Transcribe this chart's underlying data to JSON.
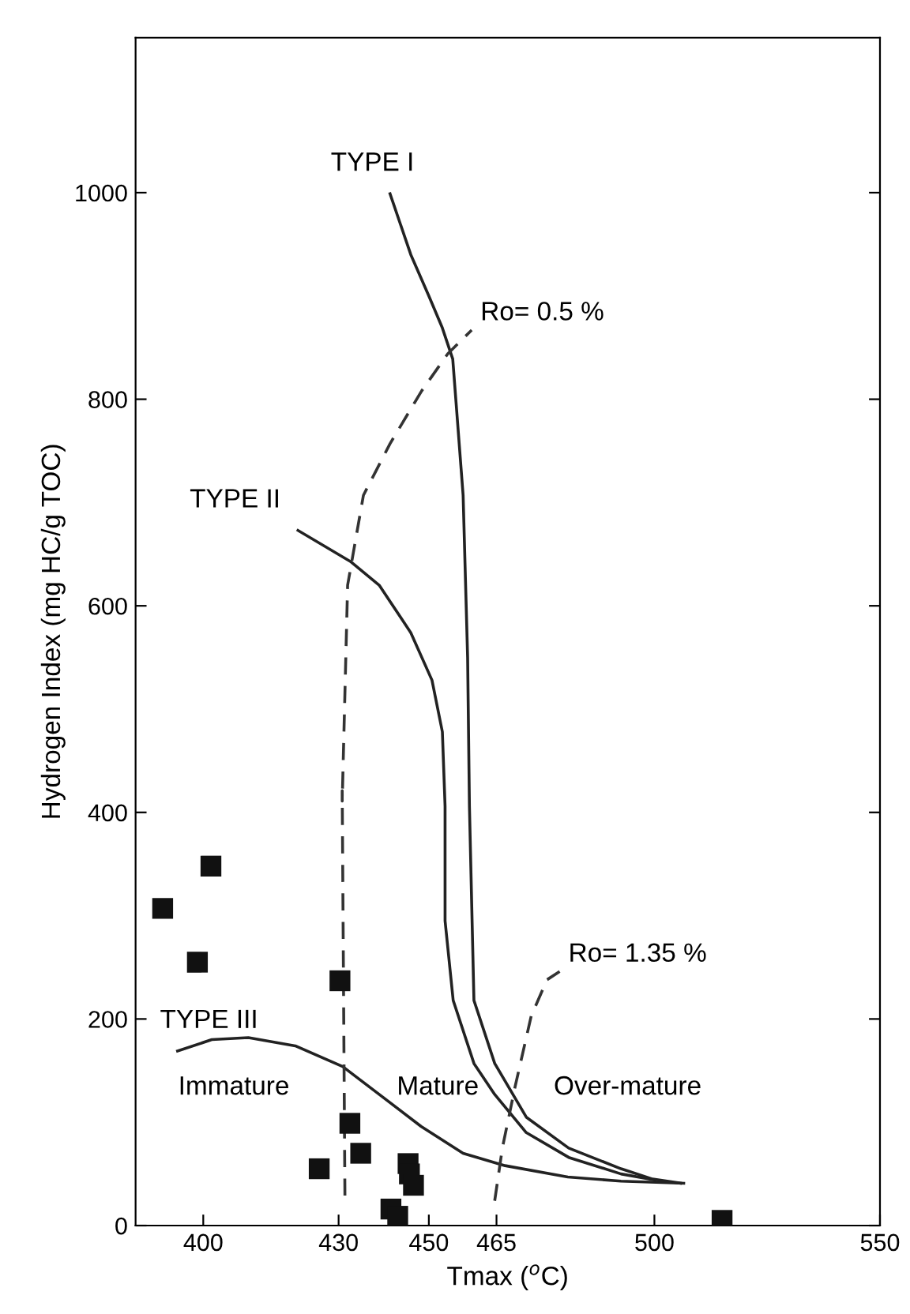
{
  "chart_data": {
    "type": "scatter",
    "xlabel": "Tmax ($^{o}$C)",
    "ylabel": "Hydrogen Index (mg HC/g TOC)",
    "xlim": [
      385,
      550
    ],
    "xticks": [
      400,
      430,
      450,
      465,
      500,
      550
    ],
    "ylim": [
      0,
      1150
    ],
    "yticks": [
      0,
      200,
      400,
      600,
      800,
      1000
    ],
    "grid": false,
    "legend": false,
    "series": [
      {
        "marker": "square",
        "color": "#111111",
        "x": [
          401.7,
          391,
          398.7,
          430.3,
          432.5,
          434.9,
          425.7,
          445.4,
          445.7,
          446.6,
          441.6,
          443.1,
          515
        ],
        "values": [
          348,
          307,
          255,
          237,
          99,
          70,
          55,
          60,
          50,
          39,
          16,
          9,
          5
        ]
      },
      {
        "name": "TYPE I",
        "type": "line",
        "line_style": "solid",
        "marker": "none",
        "color": "#222222",
        "x": [
          441.4,
          446,
          450,
          453.0,
          455.3,
          457.6,
          458.6,
          459.0,
          460,
          464.6,
          471.6,
          481,
          492.6,
          499.6,
          505.8
        ],
        "values": [
          999,
          940,
          900,
          869,
          839,
          707,
          550,
          406,
          218,
          157,
          105,
          75,
          55,
          45,
          41
        ]
      },
      {
        "name": "TYPE II",
        "type": "line",
        "line_style": "solid",
        "marker": "none",
        "color": "#222222",
        "x": [
          421,
          432.6,
          439,
          446,
          450.7,
          453,
          453.6,
          453.6,
          455.4,
          460,
          464.6,
          471.6,
          481,
          492.6,
          500.2
        ],
        "values": [
          673,
          643,
          620,
          574,
          528,
          478,
          406,
          295,
          218,
          157,
          127,
          90,
          66,
          50,
          44
        ]
      },
      {
        "name": "TYPE III",
        "type": "line",
        "line_style": "solid",
        "marker": "none",
        "color": "#222222",
        "x": [
          394.3,
          401.9,
          410,
          420.4,
          430.9,
          439,
          448.3,
          457.6,
          466.9,
          480.8,
          492.6,
          506.5
        ],
        "values": [
          169,
          180,
          182,
          174,
          154,
          127,
          96,
          70,
          58,
          47,
          43,
          41
        ]
      },
      {
        "name": "Ro= 0.5 %",
        "type": "line",
        "line_style": "dashed",
        "marker": "none",
        "color": "#333333",
        "x": [
          431.4,
          430.8,
          430.8,
          432,
          435.5,
          441.4,
          448.4,
          454.2,
          459.5
        ],
        "values": [
          29,
          421,
          411,
          620,
          707,
          757,
          808,
          844,
          867
        ]
      },
      {
        "name": "Ro= 1.35 %",
        "type": "line",
        "line_style": "dashed",
        "marker": "none",
        "color": "#333333",
        "x": [
          464.6,
          466.3,
          469.2,
          472.7,
          476.2,
          479
        ],
        "values": [
          24,
          75,
          136,
          203,
          238,
          246
        ]
      }
    ],
    "annotations": [
      "Immature",
      "Mature",
      "Over-mature"
    ]
  }
}
